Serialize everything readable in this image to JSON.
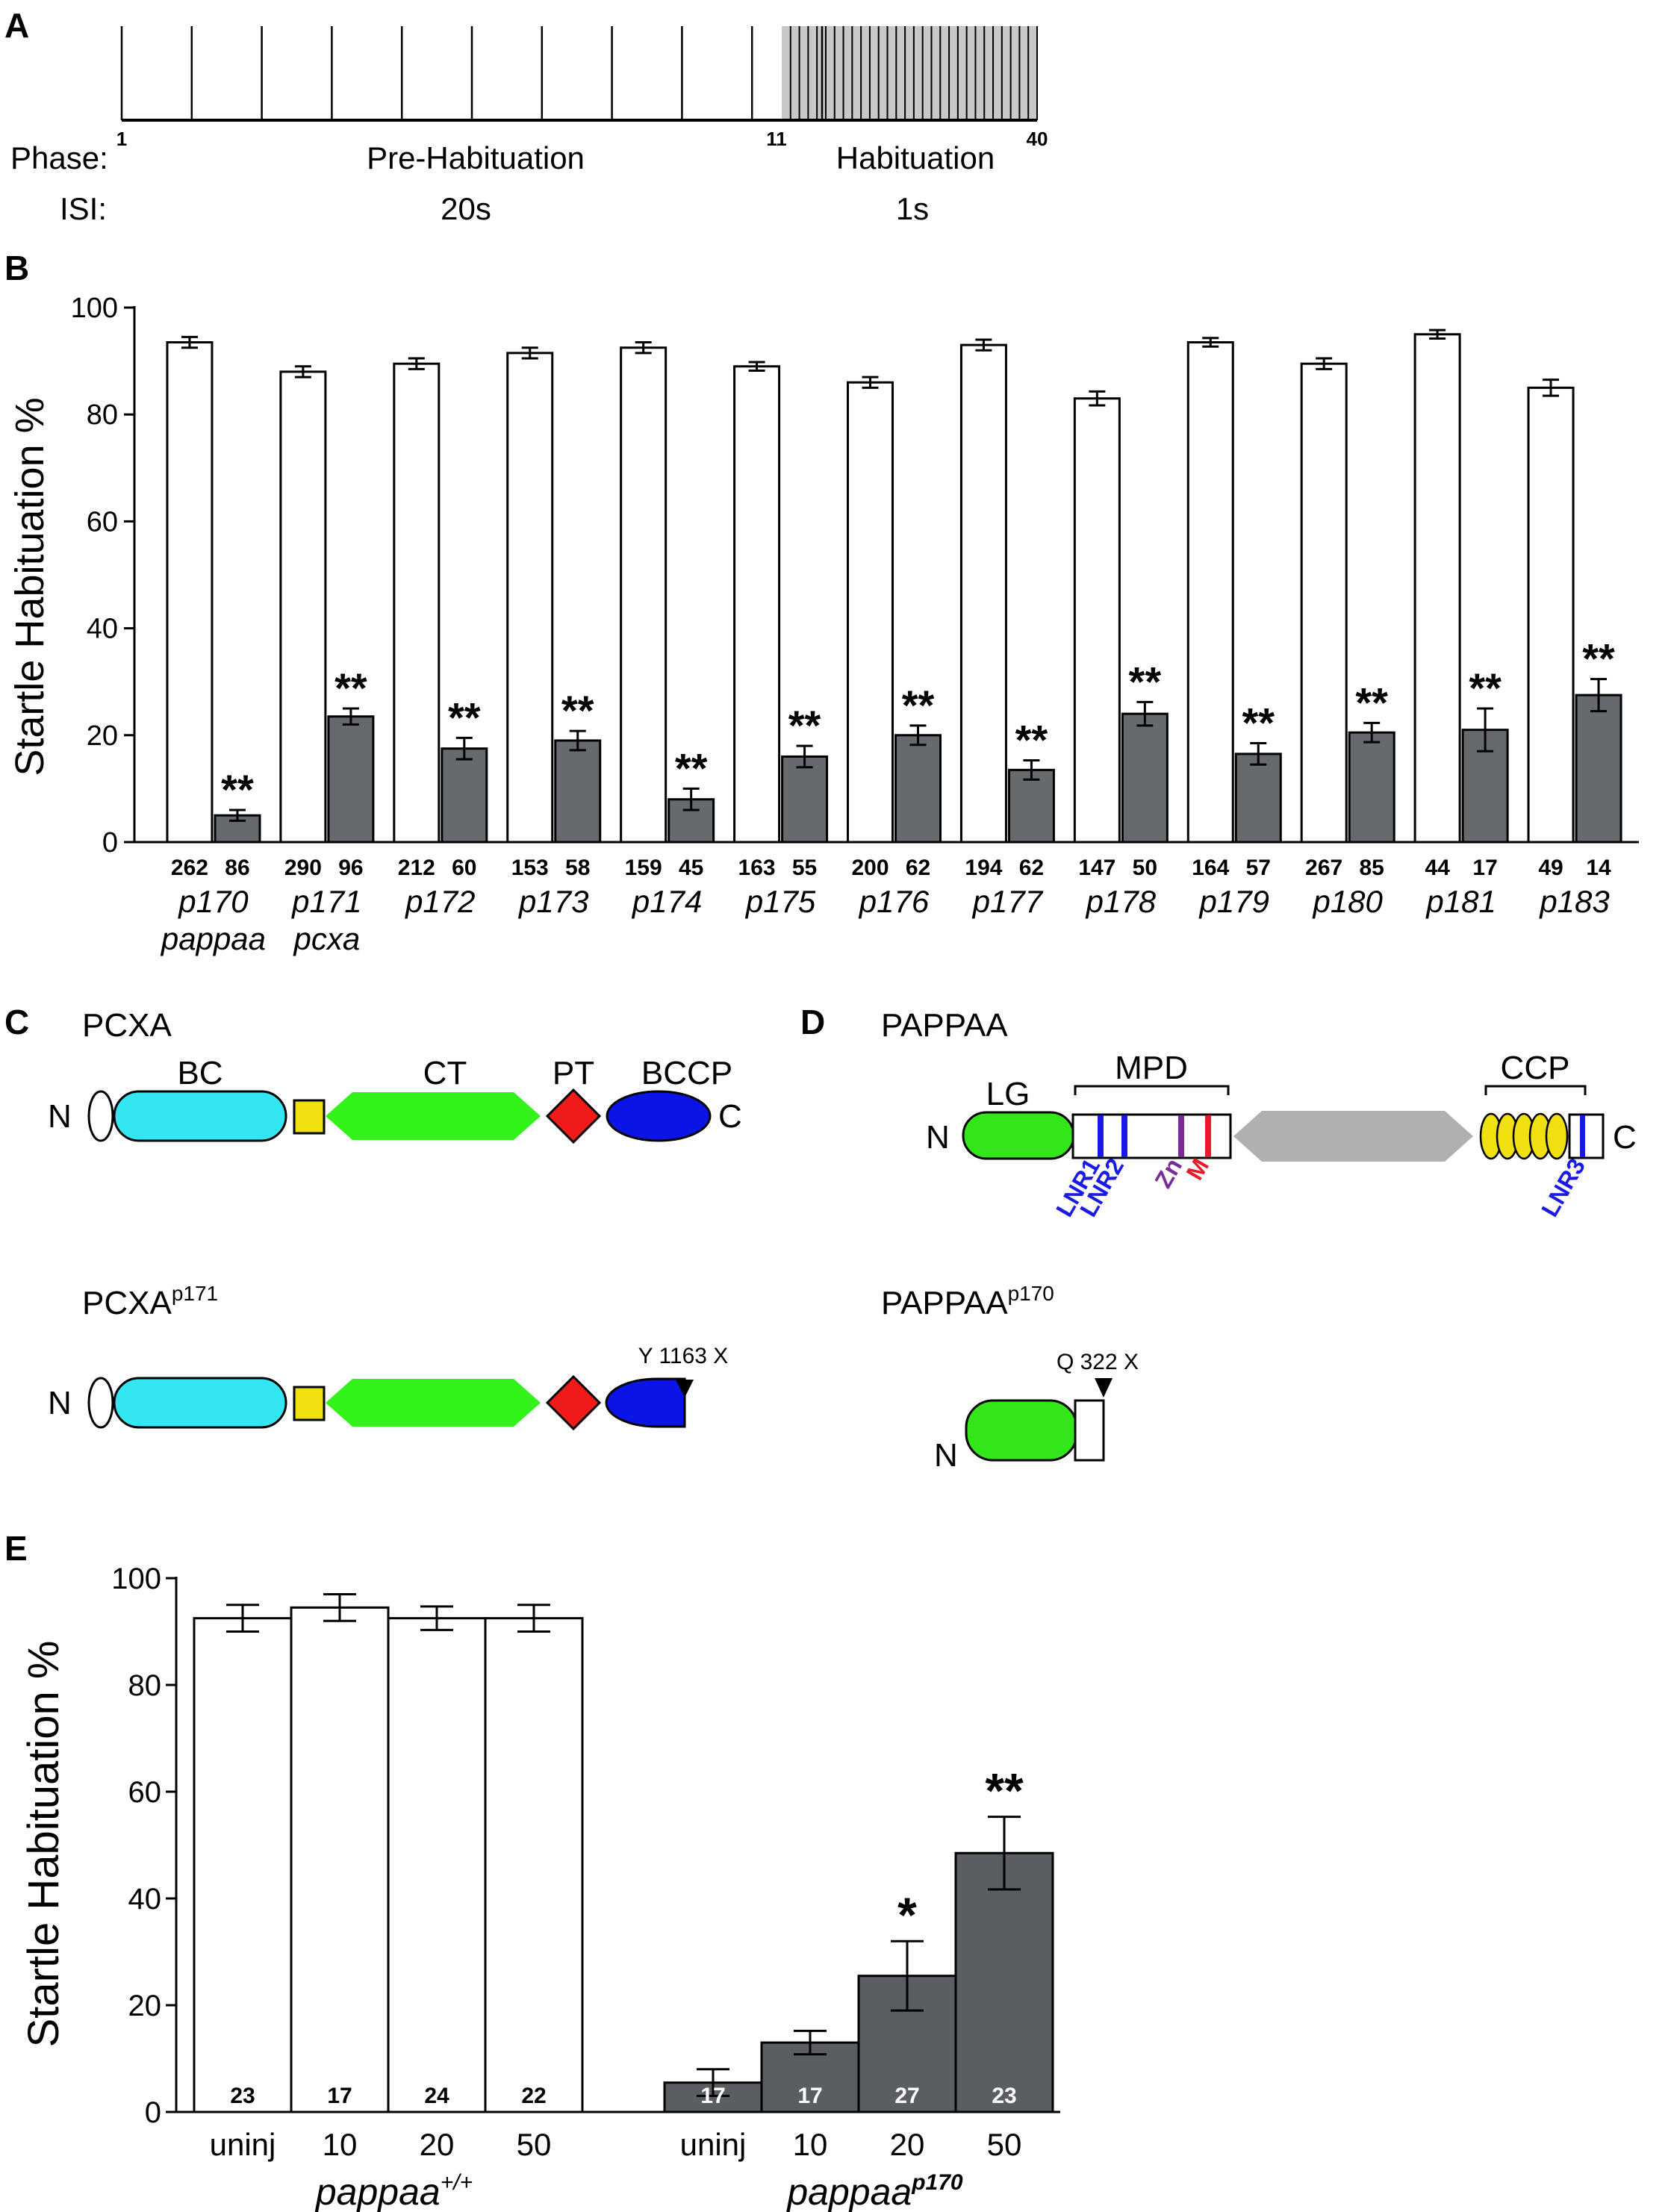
{
  "panels": [
    "A",
    "B",
    "C",
    "D",
    "E"
  ],
  "panel_a": {
    "phase_label": "Phase:",
    "isi_label": "ISI:",
    "stim_numbers": [
      "1",
      "11",
      "40"
    ],
    "pre_phase": "Pre-Habituation",
    "hab_phase": "Habituation",
    "pre_isi": "20s",
    "hab_isi": "1s"
  },
  "panel_c": {
    "wt_title": "PCXA",
    "mut_title": "PCXA",
    "mut_sup": "p171",
    "domains": [
      "BC",
      "CT",
      "PT",
      "BCCP"
    ],
    "n_term": "N",
    "c_term": "C",
    "mutation": "Y 1163 X",
    "colors": {
      "BC": "#33e6f2",
      "linker": "#f0e010",
      "CT": "#33f21a",
      "PT": "#f01a1a",
      "BCCP": "#0a14e6"
    }
  },
  "panel_d": {
    "wt_title": "PAPPAA",
    "mut_title": "PAPPAA",
    "mut_sup": "p170",
    "domains": [
      "LG",
      "MPD",
      "CCP"
    ],
    "sub_labels": [
      "LNR1",
      "LNR2",
      "Zn",
      "M",
      "LNR3"
    ],
    "n_term": "N",
    "c_term": "C",
    "mutation": "Q 322 X",
    "colors": {
      "LG": "#33e61a",
      "LNR": "#1a1ae6",
      "Zn": "#7a2a9a",
      "M": "#e61a2a",
      "middle": "#b0b0b0",
      "CCP": "#f0e010"
    }
  },
  "chart_data": [
    {
      "type": "bar",
      "panel": "B",
      "ylabel": "Startle Habituation %",
      "ylim": [
        0,
        100
      ],
      "yticks": [
        0,
        20,
        40,
        60,
        80,
        100
      ],
      "categories": [
        "p170",
        "p171",
        "p172",
        "p173",
        "p174",
        "p175",
        "p176",
        "p177",
        "p178",
        "p179",
        "p180",
        "p181",
        "p183"
      ],
      "gene_labels": {
        "p170": "pappaa",
        "p171": "pcxa"
      },
      "series": [
        {
          "values": [
            93.5,
            88,
            89.5,
            91.5,
            92.5,
            89,
            86,
            93,
            83,
            93.5,
            89.5,
            95,
            85
          ],
          "errors": [
            1,
            1,
            1,
            1,
            1,
            0.8,
            1,
            1,
            1.3,
            0.8,
            1,
            0.8,
            1.5
          ],
          "n": [
            262,
            290,
            212,
            153,
            159,
            163,
            200,
            194,
            147,
            164,
            267,
            44,
            49
          ],
          "color": "#ffffff"
        },
        {
          "values": [
            5,
            23.5,
            17.5,
            19,
            8,
            16,
            20,
            13.5,
            24,
            16.5,
            20.5,
            21,
            27.5
          ],
          "errors": [
            1,
            1.5,
            2,
            1.8,
            2,
            2,
            1.8,
            1.8,
            2.2,
            2,
            1.8,
            4,
            3
          ],
          "n": [
            86,
            96,
            60,
            58,
            45,
            55,
            62,
            62,
            50,
            57,
            85,
            17,
            14
          ],
          "sig": [
            "**",
            "**",
            "**",
            "**",
            "**",
            "**",
            "**",
            "**",
            "**",
            "**",
            "**",
            "**",
            "**"
          ],
          "color": "#666a6e"
        }
      ]
    },
    {
      "type": "bar",
      "panel": "E",
      "ylabel": "Startle Habituation %",
      "ylim": [
        0,
        100
      ],
      "yticks": [
        0,
        20,
        40,
        60,
        80,
        100
      ],
      "groups": [
        {
          "label": "pappaa",
          "sup": "+/+",
          "color": "#ffffff",
          "categories": [
            "uninj",
            "10",
            "20",
            "50"
          ],
          "values": [
            92.5,
            94.5,
            92.5,
            92.5
          ],
          "errors": [
            2.5,
            2.5,
            2.2,
            2.5
          ],
          "n": [
            "23",
            "17",
            "24",
            "22"
          ],
          "sig": [
            "",
            "",
            "",
            ""
          ]
        },
        {
          "label": "pappaa",
          "sup": "p170",
          "color": "#5a5d61",
          "categories": [
            "uninj",
            "10",
            "20",
            "50"
          ],
          "values": [
            5.5,
            13,
            25.5,
            48.5
          ],
          "errors": [
            2.5,
            2.2,
            6.5,
            6.8
          ],
          "n": [
            "17",
            "17",
            "27",
            "23"
          ],
          "sig": [
            "",
            "",
            "*",
            "**"
          ]
        }
      ]
    }
  ]
}
